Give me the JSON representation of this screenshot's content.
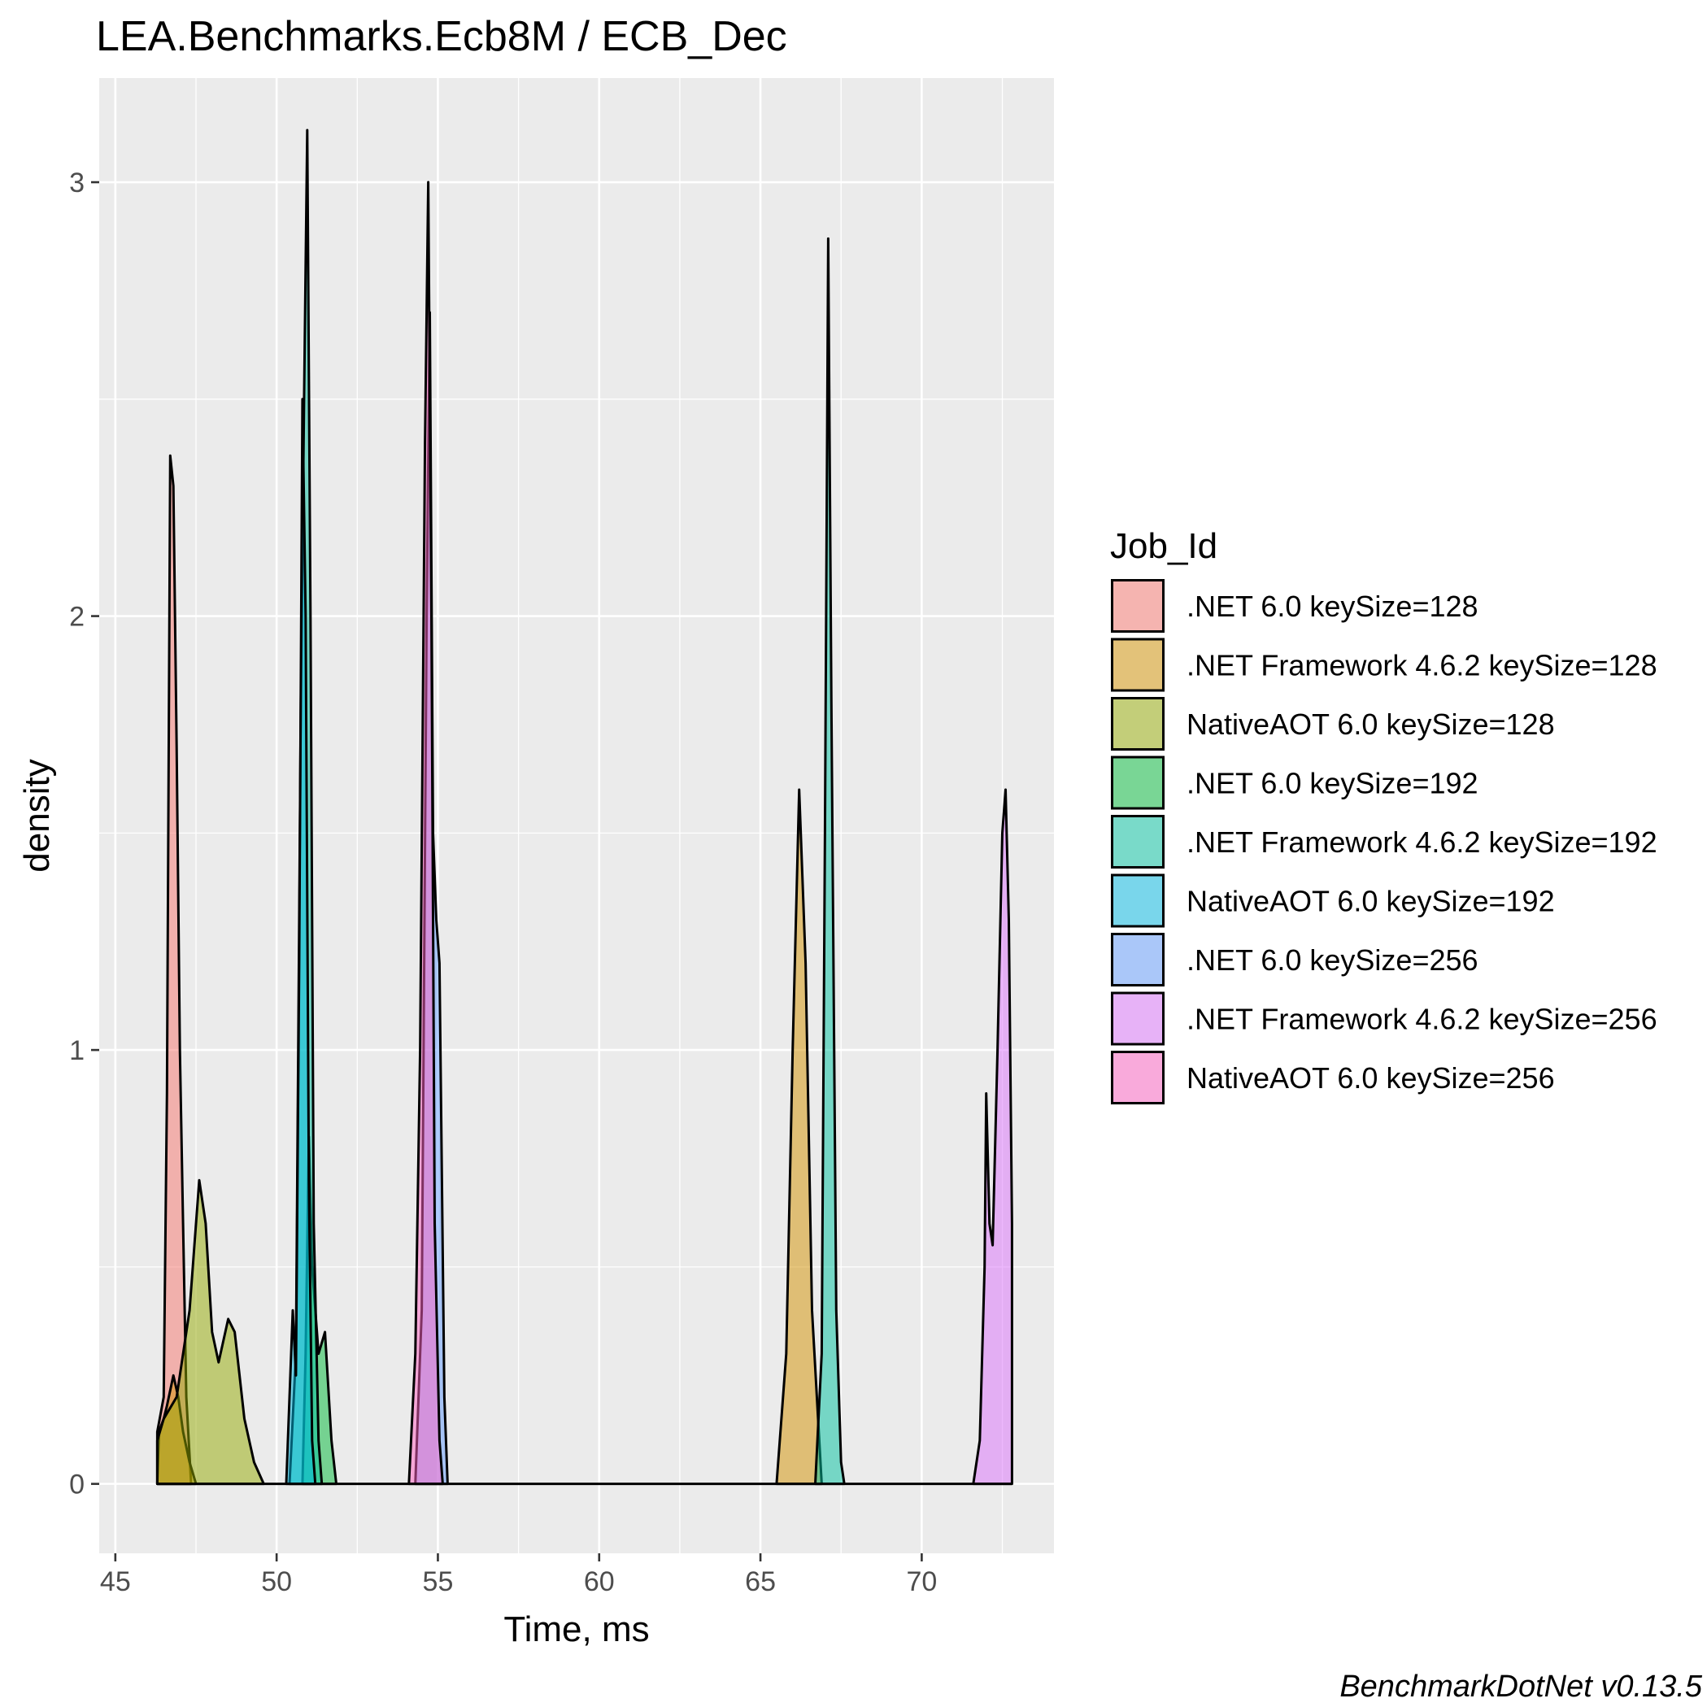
{
  "chart_data": {
    "type": "area",
    "subtype": "density",
    "title": "LEA.Benchmarks.Ecb8M / ECB_Dec",
    "xlabel": "Time, ms",
    "ylabel": "density",
    "xlim": [
      44.5,
      74.1
    ],
    "ylim": [
      -0.16,
      3.24
    ],
    "x_ticks": [
      45,
      50,
      55,
      60,
      65,
      70
    ],
    "x_tick_labels": [
      "45",
      "50",
      "55",
      "60",
      "65",
      "70"
    ],
    "y_ticks": [
      0,
      1,
      2,
      3
    ],
    "y_tick_labels": [
      "0",
      "1",
      "2",
      "3"
    ],
    "grid": true,
    "panel_background": "#ebebeb",
    "legend": {
      "title": "Job_Id",
      "position": "right"
    },
    "caption": "BenchmarkDotNet v0.13.5",
    "series": [
      {
        "name": ".NET 6.0 keySize=128",
        "color": "#F8766D",
        "points": [
          [
            46.3,
            0.12
          ],
          [
            46.5,
            0.2
          ],
          [
            46.6,
            0.9
          ],
          [
            46.7,
            2.37
          ],
          [
            46.8,
            2.3
          ],
          [
            46.9,
            1.7
          ],
          [
            47.0,
            1.0
          ],
          [
            47.1,
            0.6
          ],
          [
            47.2,
            0.2
          ],
          [
            47.35,
            0
          ]
        ]
      },
      {
        "name": ".NET Framework 4.6.2 keySize=128",
        "color": "#D39200",
        "points": [
          [
            46.3,
            0
          ],
          [
            46.35,
            0.12
          ],
          [
            46.5,
            0.15
          ],
          [
            46.6,
            0.18
          ],
          [
            46.8,
            0.25
          ],
          [
            46.95,
            0.2
          ],
          [
            47.1,
            0.12
          ],
          [
            47.3,
            0.05
          ],
          [
            47.5,
            0
          ]
        ]
      },
      {
        "name": "NativeAOT 6.0 keySize=128",
        "color": "#93AA00",
        "points": [
          [
            46.3,
            0.1
          ],
          [
            46.5,
            0.15
          ],
          [
            46.9,
            0.2
          ],
          [
            47.3,
            0.4
          ],
          [
            47.6,
            0.7
          ],
          [
            47.8,
            0.6
          ],
          [
            48.0,
            0.35
          ],
          [
            48.2,
            0.28
          ],
          [
            48.5,
            0.38
          ],
          [
            48.7,
            0.35
          ],
          [
            49.0,
            0.15
          ],
          [
            49.3,
            0.05
          ],
          [
            49.6,
            0
          ]
        ]
      },
      {
        "name": ".NET 6.0 keySize=192",
        "color": "#00BA38",
        "points": [
          [
            50.8,
            0
          ],
          [
            50.9,
            0.3
          ],
          [
            51.0,
            0.8
          ],
          [
            51.1,
            0.5
          ],
          [
            51.3,
            0.3
          ],
          [
            51.5,
            0.35
          ],
          [
            51.7,
            0.1
          ],
          [
            51.85,
            0
          ]
        ]
      },
      {
        "name": ".NET Framework 4.6.2 keySize=192",
        "color": "#00C19F",
        "points": [
          [
            50.4,
            0
          ],
          [
            50.6,
            0.3
          ],
          [
            50.75,
            1.8
          ],
          [
            50.85,
            2.5
          ],
          [
            50.95,
            3.12
          ],
          [
            51.05,
            2.0
          ],
          [
            51.15,
            0.6
          ],
          [
            51.3,
            0.1
          ],
          [
            51.4,
            0
          ]
        ]
      },
      {
        "name": "NativeAOT 6.0 keySize=192",
        "color": "#00B9E3",
        "points": [
          [
            50.3,
            0
          ],
          [
            50.5,
            0.4
          ],
          [
            50.6,
            0.25
          ],
          [
            50.7,
            1.2
          ],
          [
            50.8,
            2.5
          ],
          [
            50.9,
            2.0
          ],
          [
            51.0,
            0.7
          ],
          [
            51.1,
            0.1
          ],
          [
            51.2,
            0
          ]
        ]
      },
      {
        "name": ".NET 6.0 keySize=256",
        "color": "#619CFF",
        "points": [
          [
            54.3,
            0
          ],
          [
            54.5,
            0.4
          ],
          [
            54.65,
            2.0
          ],
          [
            54.75,
            2.7
          ],
          [
            54.85,
            1.5
          ],
          [
            54.95,
            1.3
          ],
          [
            55.05,
            1.2
          ],
          [
            55.2,
            0.2
          ],
          [
            55.3,
            0
          ]
        ]
      },
      {
        "name": ".NET Framework 4.6.2 keySize=256",
        "color": "#DB72FB",
        "points": [
          [
            71.6,
            0
          ],
          [
            71.8,
            0.1
          ],
          [
            71.95,
            0.5
          ],
          [
            72.0,
            0.9
          ],
          [
            72.1,
            0.6
          ],
          [
            72.2,
            0.55
          ],
          [
            72.35,
            1.0
          ],
          [
            72.5,
            1.5
          ],
          [
            72.6,
            1.6
          ],
          [
            72.7,
            1.3
          ],
          [
            72.8,
            0.6
          ]
        ]
      },
      {
        "name": "NativeAOT 6.0 keySize=256",
        "color": "#FF61C3",
        "points": [
          [
            54.1,
            0
          ],
          [
            54.3,
            0.3
          ],
          [
            54.45,
            1.0
          ],
          [
            54.6,
            2.4
          ],
          [
            54.7,
            3.0
          ],
          [
            54.8,
            2.0
          ],
          [
            54.9,
            0.6
          ],
          [
            55.05,
            0.1
          ],
          [
            55.15,
            0
          ]
        ]
      }
    ],
    "extra_series": [
      {
        "job": "net-framework-128",
        "color": "#D39200",
        "points": [
          [
            65.5,
            0
          ],
          [
            65.8,
            0.3
          ],
          [
            66.0,
            1.0
          ],
          [
            66.2,
            1.6
          ],
          [
            66.4,
            1.2
          ],
          [
            66.6,
            0.4
          ],
          [
            66.9,
            0
          ]
        ]
      },
      {
        "job": "net-framework-192",
        "color": "#00C19F",
        "points": [
          [
            66.7,
            0
          ],
          [
            66.9,
            0.3
          ],
          [
            67.0,
            1.5
          ],
          [
            67.1,
            2.87
          ],
          [
            67.2,
            1.8
          ],
          [
            67.35,
            0.4
          ],
          [
            67.5,
            0.05
          ],
          [
            67.6,
            0
          ]
        ]
      }
    ]
  }
}
